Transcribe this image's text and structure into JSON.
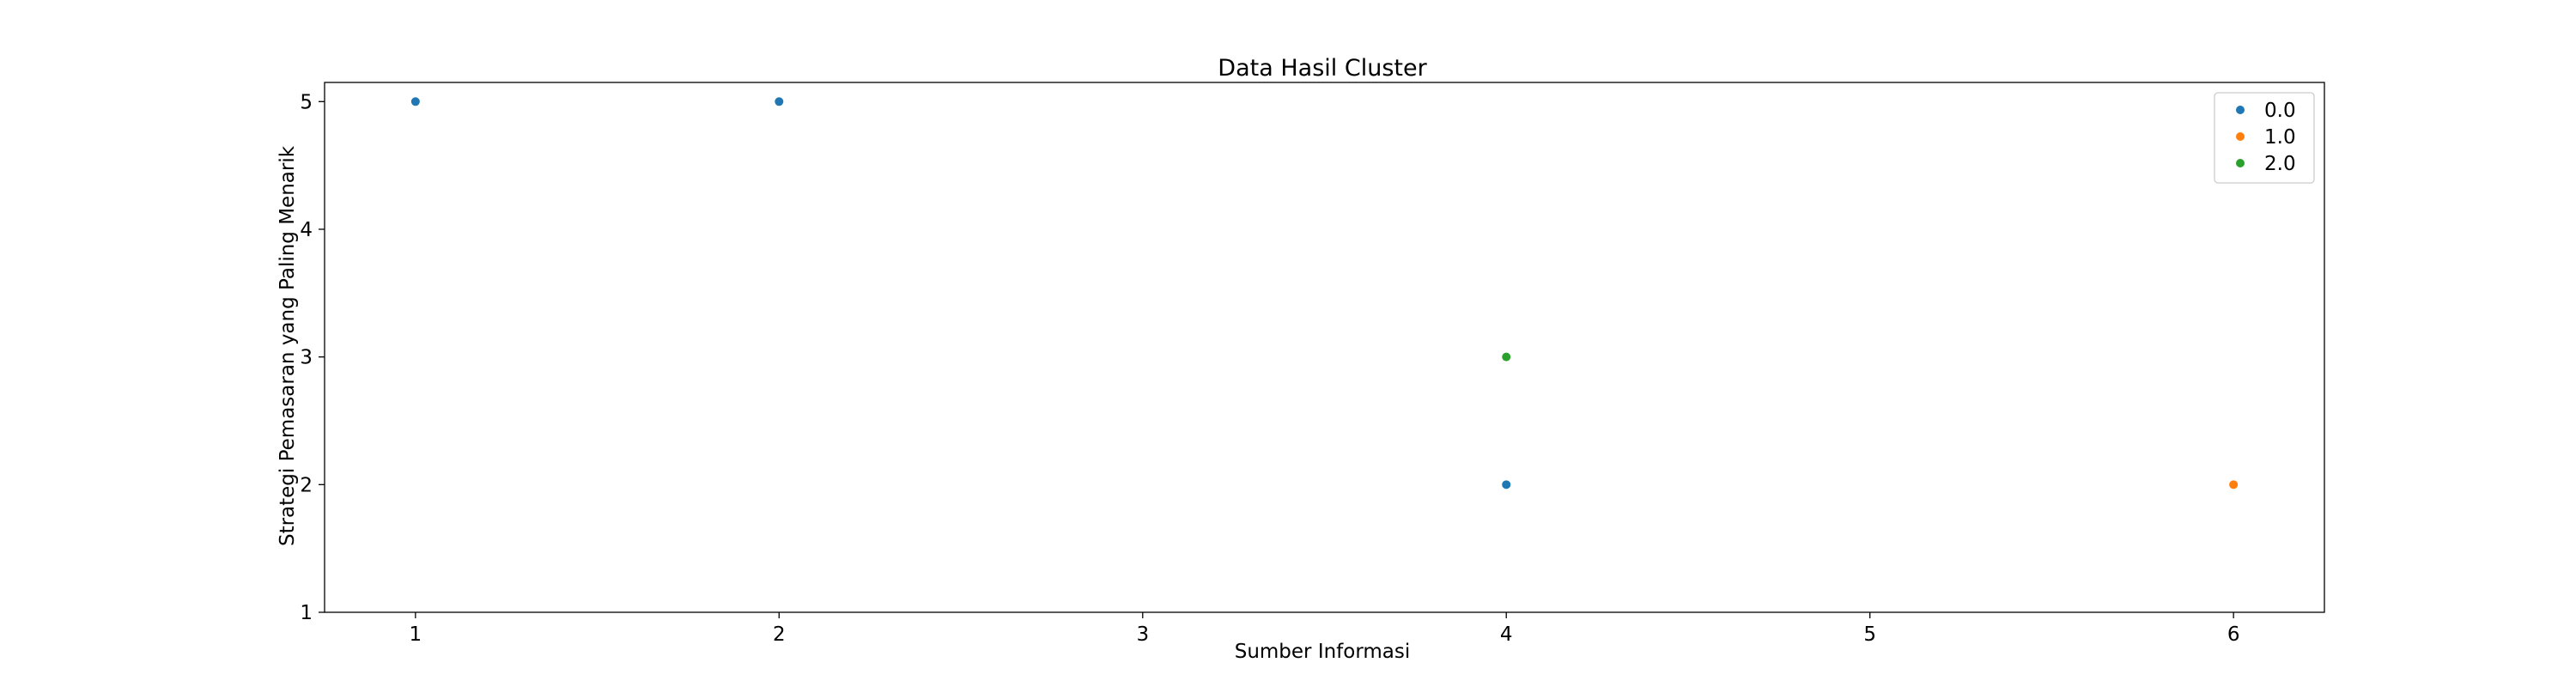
{
  "chart_data": {
    "type": "scatter",
    "title": "Data Hasil Cluster",
    "xlabel": "Sumber Informasi",
    "ylabel": "Strategi Pemasaran yang Paling Menarik",
    "xlim": [
      0.75,
      6.25
    ],
    "ylim": [
      1,
      5.15
    ],
    "xticks": [
      1,
      2,
      3,
      4,
      5,
      6
    ],
    "yticks": [
      1,
      2,
      3,
      4,
      5
    ],
    "legend_position": "top-right",
    "series": [
      {
        "name": "0.0",
        "color": "#1f77b4",
        "points": [
          [
            1,
            5
          ],
          [
            2,
            5
          ],
          [
            4,
            2
          ]
        ]
      },
      {
        "name": "1.0",
        "color": "#ff7f0e",
        "points": [
          [
            6,
            2
          ]
        ]
      },
      {
        "name": "2.0",
        "color": "#2ca02c",
        "points": [
          [
            4,
            3
          ]
        ]
      }
    ]
  }
}
